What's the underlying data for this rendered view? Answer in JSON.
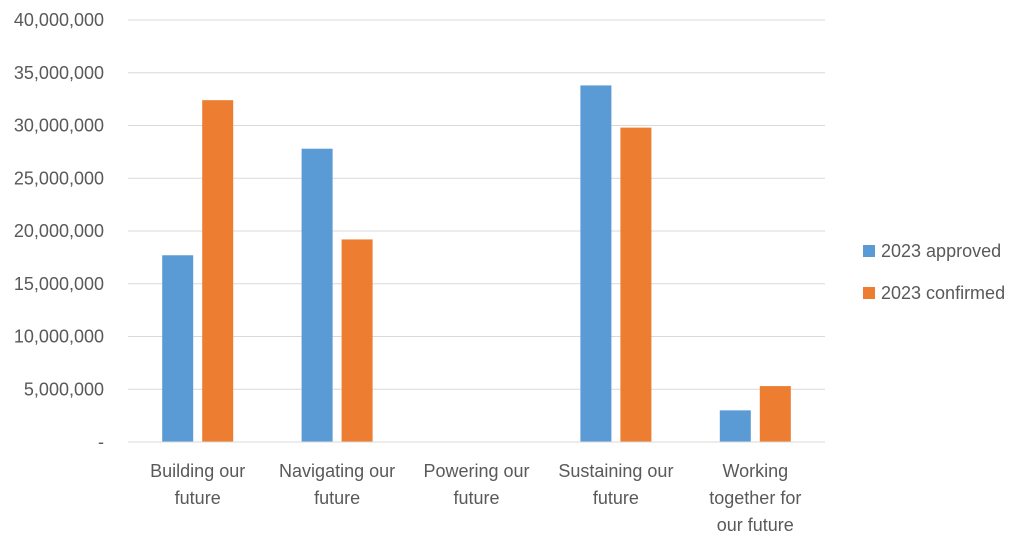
{
  "chart_data": {
    "type": "bar",
    "title": "",
    "xlabel": "",
    "ylabel": "",
    "categories": [
      [
        "Building our",
        "future"
      ],
      [
        "Navigating our",
        "future"
      ],
      [
        "Powering our",
        "future"
      ],
      [
        "Sustaining our",
        "future"
      ],
      [
        "Working",
        "together for",
        "our future"
      ]
    ],
    "series": [
      {
        "name": "2023 approved",
        "color": "#5B9BD5",
        "values": [
          17700000,
          27800000,
          0,
          33800000,
          3000000
        ]
      },
      {
        "name": "2023 confirmed",
        "color": "#ED7D31",
        "values": [
          32400000,
          19200000,
          0,
          29800000,
          5300000
        ]
      }
    ],
    "ylim": [
      0,
      40000000
    ],
    "yticks": [
      0,
      5000000,
      10000000,
      15000000,
      20000000,
      25000000,
      30000000,
      35000000,
      40000000
    ],
    "ytick_labels": [
      "-",
      "5,000,000",
      "10,000,000",
      "15,000,000",
      "20,000,000",
      "25,000,000",
      "30,000,000",
      "35,000,000",
      "40,000,000"
    ],
    "grid": true,
    "legend_position": "right"
  }
}
